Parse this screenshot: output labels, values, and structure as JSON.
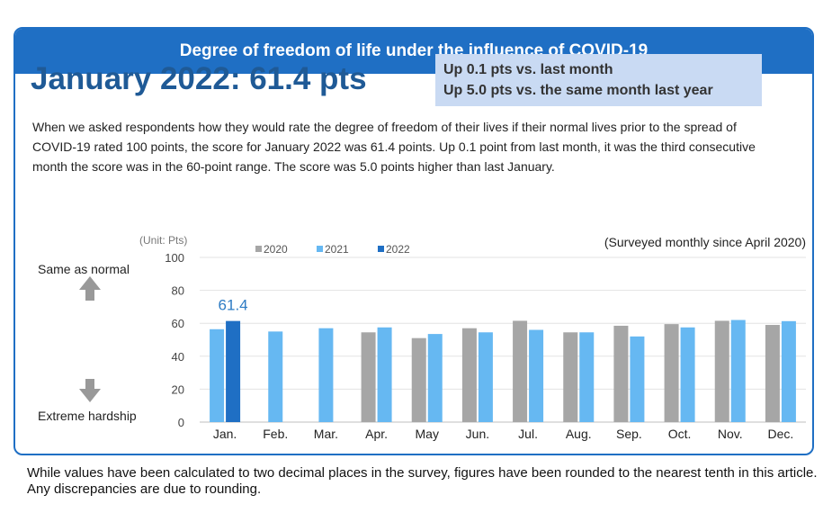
{
  "header": {
    "title": "Degree of freedom of life under the influence of COVID-19"
  },
  "headline": "January 2022: 61.4 pts",
  "changes": [
    "Up 0.1 pts vs. last month",
    "Up 5.0 pts vs. the same month last year"
  ],
  "description": "When we asked respondents how they would rate the degree of freedom of their lives if their normal lives prior to the spread of COVID-19 rated 100 points, the score for January 2022 was 61.4 points. Up 0.1 point from last month, it was the third consecutive month the score was in the 60-point range.  The score was 5.0 points higher than last January.",
  "scale_labels": {
    "top": "Same as normal",
    "bottom": "Extreme hardship"
  },
  "footnote": "While values have been calculated to two decimal places in the survey, figures have been rounded to the nearest tenth in this article. Any discrepancies are due to rounding.",
  "chart_data": {
    "type": "bar",
    "unit_label": "(Unit: Pts)",
    "note": "(Surveyed monthly since April 2020)",
    "categories": [
      "Jan.",
      "Feb.",
      "Mar.",
      "Apr.",
      "May",
      "Jun.",
      "Jul.",
      "Aug.",
      "Sep.",
      "Oct.",
      "Nov.",
      "Dec."
    ],
    "ylim": [
      0,
      100
    ],
    "yticks": [
      0,
      20,
      40,
      60,
      80,
      100
    ],
    "grid": true,
    "legend_position": "top",
    "series": [
      {
        "name": "2020",
        "color": "#a6a6a6",
        "values": [
          null,
          null,
          null,
          54.5,
          51,
          57,
          61.5,
          54.5,
          58.5,
          59.5,
          61.5,
          59
        ]
      },
      {
        "name": "2021",
        "color": "#66b8f2",
        "values": [
          56.4,
          55,
          57,
          57.5,
          53.5,
          54.5,
          56,
          54.5,
          52,
          57.5,
          62,
          61.3
        ]
      },
      {
        "name": "2022",
        "color": "#1f6fc4",
        "values": [
          61.4,
          null,
          null,
          null,
          null,
          null,
          null,
          null,
          null,
          null,
          null,
          null
        ]
      }
    ],
    "data_labels": [
      {
        "series": "2022",
        "category": "Jan.",
        "text": "61.4"
      }
    ]
  }
}
